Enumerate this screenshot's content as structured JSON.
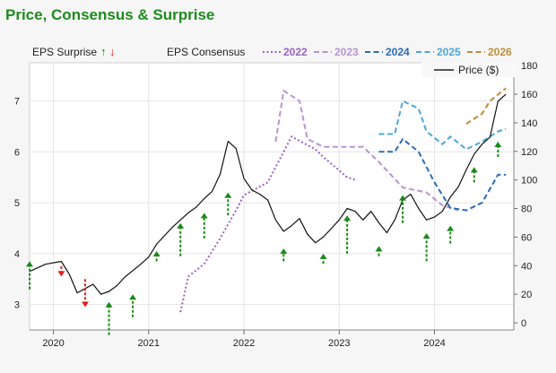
{
  "title": "Price, Consensus & Surprise",
  "colors": {
    "price": "#111111",
    "surprise_up": "#1a8a1a",
    "surprise_down": "#e32222",
    "title": "#1f8a1f",
    "cons_2022": "#9a63c4",
    "cons_2023": "#b694d2",
    "cons_2024": "#2b6cb4",
    "cons_2025": "#4ba6d8",
    "cons_2026": "#c08a3a"
  },
  "legend": {
    "eps_surprise": "EPS Surprise",
    "eps_consensus": "EPS Consensus",
    "up_arrow": "↑",
    "down_arrow": "↓",
    "price_label": "Price ($)"
  },
  "chart_data": {
    "type": "line",
    "title": "Price, Consensus & Surprise",
    "x_ticks": [
      "2020",
      "2021",
      "2022",
      "2023",
      "2024"
    ],
    "x_range": [
      "2019-10",
      "2024-10"
    ],
    "y_left": {
      "label": "",
      "ticks": [
        "3",
        "4",
        "5",
        "6",
        "7"
      ],
      "range": [
        2.5,
        7.75
      ]
    },
    "y_right": {
      "label": "Price ($)",
      "ticks": [
        "0",
        "20",
        "40",
        "60",
        "80",
        "100",
        "120",
        "140",
        "160",
        "180"
      ],
      "range": [
        -5,
        182
      ]
    },
    "price_series": {
      "name": "Price ($)",
      "axis": "right",
      "points": [
        [
          "2019-10",
          36
        ],
        [
          "2019-12",
          41
        ],
        [
          "2020-02",
          43
        ],
        [
          "2020-03",
          34
        ],
        [
          "2020-04",
          21
        ],
        [
          "2020-05",
          24
        ],
        [
          "2020-06",
          27
        ],
        [
          "2020-07",
          20
        ],
        [
          "2020-08",
          22
        ],
        [
          "2020-09",
          26
        ],
        [
          "2020-10",
          32
        ],
        [
          "2020-12",
          41
        ],
        [
          "2021-01",
          46
        ],
        [
          "2021-02",
          55
        ],
        [
          "2021-04",
          67
        ],
        [
          "2021-05",
          72
        ],
        [
          "2021-06",
          77
        ],
        [
          "2021-07",
          81
        ],
        [
          "2021-08",
          87
        ],
        [
          "2021-09",
          92
        ],
        [
          "2021-10",
          104
        ],
        [
          "2021-11",
          127
        ],
        [
          "2021-12",
          122
        ],
        [
          "2022-01",
          101
        ],
        [
          "2022-02",
          93
        ],
        [
          "2022-03",
          90
        ],
        [
          "2022-04",
          86
        ],
        [
          "2022-05",
          72
        ],
        [
          "2022-06",
          64
        ],
        [
          "2022-07",
          68
        ],
        [
          "2022-08",
          73
        ],
        [
          "2022-09",
          62
        ],
        [
          "2022-10",
          56
        ],
        [
          "2022-11",
          60
        ],
        [
          "2022-12",
          66
        ],
        [
          "2023-01",
          72
        ],
        [
          "2023-02",
          80
        ],
        [
          "2023-03",
          78
        ],
        [
          "2023-04",
          72
        ],
        [
          "2023-05",
          78
        ],
        [
          "2023-06",
          70
        ],
        [
          "2023-07",
          63
        ],
        [
          "2023-08",
          72
        ],
        [
          "2023-09",
          86
        ],
        [
          "2023-10",
          90
        ],
        [
          "2023-11",
          80
        ],
        [
          "2023-12",
          72
        ],
        [
          "2024-01",
          74
        ],
        [
          "2024-02",
          78
        ],
        [
          "2024-03",
          88
        ],
        [
          "2024-04",
          95
        ],
        [
          "2024-05",
          107
        ],
        [
          "2024-06",
          118
        ],
        [
          "2024-07",
          125
        ],
        [
          "2024-08",
          130
        ],
        [
          "2024-09",
          155
        ],
        [
          "2024-10",
          160
        ]
      ]
    },
    "consensus_series": [
      {
        "name": "2022",
        "axis": "left",
        "points": [
          [
            "2021-05",
            2.85
          ],
          [
            "2021-06",
            3.55
          ],
          [
            "2021-08",
            3.8
          ],
          [
            "2021-10",
            4.3
          ],
          [
            "2021-12",
            4.85
          ],
          [
            "2022-01",
            5.15
          ],
          [
            "2022-04",
            5.4
          ],
          [
            "2022-07",
            6.3
          ],
          [
            "2022-10",
            6.05
          ],
          [
            "2022-11",
            5.9
          ],
          [
            "2023-02",
            5.5
          ],
          [
            "2023-03",
            5.45
          ]
        ]
      },
      {
        "name": "2023",
        "axis": "left",
        "points": [
          [
            "2022-05",
            6.2
          ],
          [
            "2022-06",
            7.2
          ],
          [
            "2022-08",
            7.0
          ],
          [
            "2022-09",
            6.25
          ],
          [
            "2022-11",
            6.1
          ],
          [
            "2023-02",
            6.1
          ],
          [
            "2023-04",
            6.1
          ],
          [
            "2023-06",
            5.8
          ],
          [
            "2023-09",
            5.3
          ],
          [
            "2023-12",
            5.2
          ],
          [
            "2024-02",
            4.95
          ],
          [
            "2024-04",
            4.85
          ]
        ]
      },
      {
        "name": "2024",
        "axis": "left",
        "points": [
          [
            "2023-06",
            6.0
          ],
          [
            "2023-08",
            6.0
          ],
          [
            "2023-09",
            6.25
          ],
          [
            "2023-11",
            6.0
          ],
          [
            "2024-01",
            5.4
          ],
          [
            "2024-03",
            4.9
          ],
          [
            "2024-05",
            4.85
          ],
          [
            "2024-07",
            5.0
          ],
          [
            "2024-09",
            5.55
          ],
          [
            "2024-10",
            5.55
          ]
        ]
      },
      {
        "name": "2025",
        "axis": "left",
        "points": [
          [
            "2023-06",
            6.35
          ],
          [
            "2023-08",
            6.35
          ],
          [
            "2023-09",
            7.0
          ],
          [
            "2023-11",
            6.85
          ],
          [
            "2023-12",
            6.4
          ],
          [
            "2024-02",
            6.15
          ],
          [
            "2024-03",
            6.3
          ],
          [
            "2024-05",
            6.05
          ],
          [
            "2024-07",
            6.2
          ],
          [
            "2024-09",
            6.4
          ],
          [
            "2024-10",
            6.45
          ]
        ]
      },
      {
        "name": "2026",
        "axis": "left",
        "points": [
          [
            "2024-05",
            6.55
          ],
          [
            "2024-07",
            6.75
          ],
          [
            "2024-08",
            7.0
          ],
          [
            "2024-10",
            7.25
          ]
        ]
      }
    ],
    "surprises": [
      {
        "date": "2019-10",
        "direction": "up",
        "from": 3.3,
        "to": 3.85
      },
      {
        "date": "2020-02",
        "direction": "down",
        "from": 3.75,
        "to": 3.55
      },
      {
        "date": "2020-05",
        "direction": "down",
        "from": 3.5,
        "to": 2.95
      },
      {
        "date": "2020-08",
        "direction": "up",
        "from": 2.4,
        "to": 3.05
      },
      {
        "date": "2020-11",
        "direction": "up",
        "from": 2.75,
        "to": 3.2
      },
      {
        "date": "2021-02",
        "direction": "up",
        "from": 3.85,
        "to": 4.05
      },
      {
        "date": "2021-05",
        "direction": "up",
        "from": 3.95,
        "to": 4.6
      },
      {
        "date": "2021-08",
        "direction": "up",
        "from": 4.3,
        "to": 4.8
      },
      {
        "date": "2021-11",
        "direction": "up",
        "from": 4.75,
        "to": 5.2
      },
      {
        "date": "2022-06",
        "direction": "up",
        "from": 3.85,
        "to": 4.1
      },
      {
        "date": "2022-11",
        "direction": "up",
        "from": 3.8,
        "to": 4.0
      },
      {
        "date": "2023-02",
        "direction": "up",
        "from": 4.0,
        "to": 4.75
      },
      {
        "date": "2023-06",
        "direction": "up",
        "from": 3.95,
        "to": 4.15
      },
      {
        "date": "2023-09",
        "direction": "up",
        "from": 4.6,
        "to": 5.15
      },
      {
        "date": "2023-12",
        "direction": "up",
        "from": 3.85,
        "to": 4.4
      },
      {
        "date": "2024-03",
        "direction": "up",
        "from": 4.2,
        "to": 4.55
      },
      {
        "date": "2024-06",
        "direction": "up",
        "from": 5.4,
        "to": 5.7
      },
      {
        "date": "2024-09",
        "direction": "up",
        "from": 5.9,
        "to": 6.2
      }
    ],
    "grid": true,
    "legend_position": "top"
  }
}
